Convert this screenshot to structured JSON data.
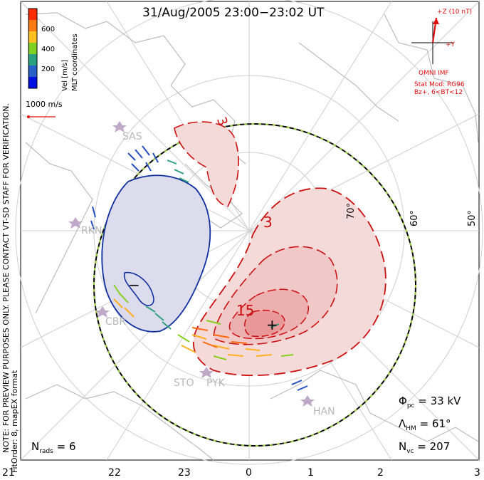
{
  "title": "31/Aug/2005 23:00−23:02 UT",
  "legend": {
    "coord": "MLT coordinates",
    "vel_label": "Vel [m/s]",
    "ticks": [
      "600",
      "400",
      "200"
    ],
    "colors": [
      "#ff2a00",
      "#ff7a10",
      "#ffc020",
      "#80d020",
      "#28a080",
      "#2860c8",
      "#0010e0"
    ],
    "ref_vector": "1000 m/s"
  },
  "imf": {
    "z_label": "+Z (10 nT)",
    "y_label": "+Y",
    "source": "OMNI IMF",
    "color": "#e01010"
  },
  "model": [
    "Stat Mod: RG96",
    "Bz+, 6<BT<12"
  ],
  "side_note": "NOTE: FOR PREVIEW PURPOSES ONLY. PLEASE CONTACT VT-SD STAFF FOR VERIFICATION.",
  "fit_note": "FitOrder: 8, mapEX format",
  "lat_labels": [
    "70°",
    "60°",
    "50°"
  ],
  "contour_labels": [
    "3",
    "3",
    "15",
    "−",
    "+"
  ],
  "stations": [
    "SAS",
    "RKN",
    "CBR",
    "STO",
    "PYK",
    "HAN"
  ],
  "stats": {
    "phi_sym": "Φ",
    "phi_sub": "pc",
    "phi_val": "= 33 kV",
    "lam_sym": "Λ",
    "lam_sub": "HM",
    "lam_val": "= 61°",
    "nvc_sym": "N",
    "nvc_sub": "vc",
    "nvc_val": "= 207",
    "nrads_sym": "N",
    "nrads_sub": "rads",
    "nrads_val": "= 6"
  },
  "mlt_axis": [
    "21",
    "22",
    "23",
    "0",
    "1",
    "2",
    "3"
  ],
  "colors": {
    "positive_fill": "#f5dada",
    "negative_fill": "#dcdcec",
    "positive_line": "#cc1010",
    "negative_line": "#1030a0",
    "coast": "#bcbcbc",
    "grid": "#d0d0d0"
  }
}
